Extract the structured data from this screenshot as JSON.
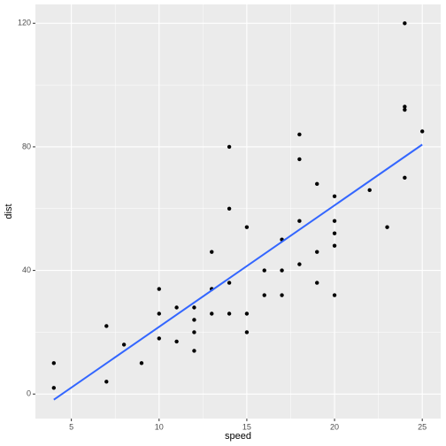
{
  "chart_data": {
    "type": "scatter",
    "x_label": "speed",
    "y_label": "dist",
    "series": [
      {
        "type": "scatter",
        "color": "#000000",
        "x": [
          4,
          4,
          7,
          7,
          8,
          9,
          10,
          10,
          10,
          11,
          11,
          12,
          12,
          12,
          12,
          13,
          13,
          13,
          13,
          14,
          14,
          14,
          14,
          15,
          15,
          15,
          16,
          16,
          17,
          17,
          17,
          18,
          18,
          18,
          18,
          19,
          19,
          19,
          20,
          20,
          20,
          20,
          20,
          22,
          23,
          24,
          24,
          24,
          24,
          25
        ],
        "values": [
          2,
          10,
          4,
          22,
          16,
          10,
          18,
          26,
          34,
          17,
          28,
          14,
          20,
          24,
          28,
          26,
          34,
          34,
          46,
          26,
          36,
          60,
          80,
          20,
          26,
          54,
          32,
          40,
          32,
          40,
          50,
          42,
          56,
          76,
          84,
          36,
          46,
          68,
          32,
          48,
          52,
          56,
          64,
          66,
          54,
          70,
          92,
          93,
          120,
          85
        ]
      },
      {
        "type": "line",
        "color": "#3366ff",
        "x": [
          4,
          25
        ],
        "values": [
          -1.849,
          80.731
        ]
      }
    ],
    "xlim": [
      2.95,
      26.05
    ],
    "xticks": [
      5,
      10,
      15,
      20,
      25
    ],
    "ylim": [
      -7.94,
      126.09
    ],
    "yticks": [
      0,
      40,
      80,
      120
    ],
    "grid": true
  }
}
